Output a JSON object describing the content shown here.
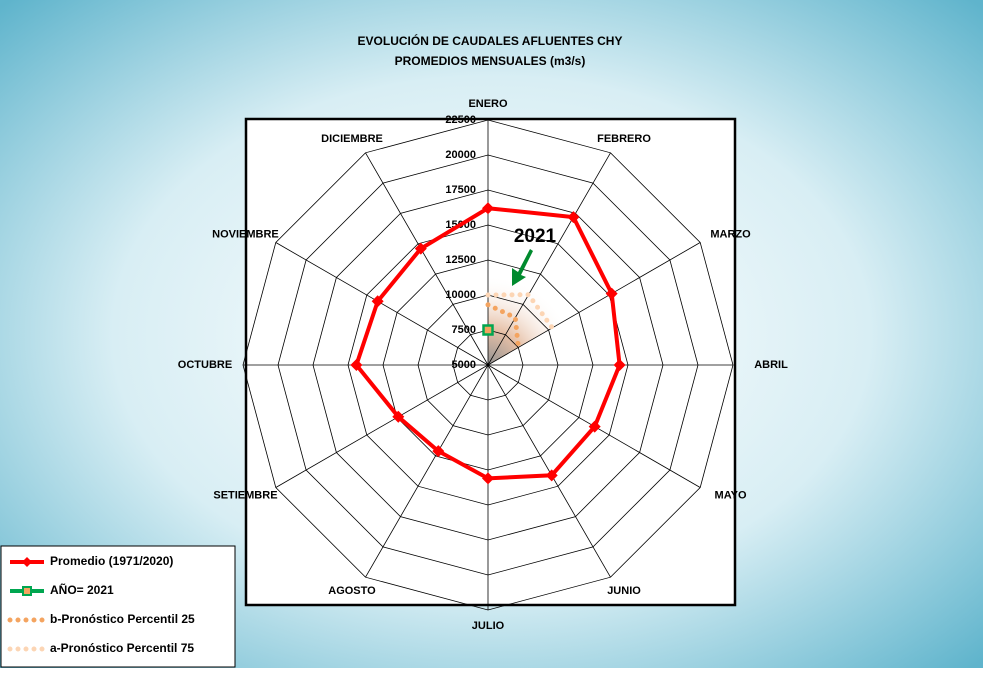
{
  "chart_data": {
    "type": "radar",
    "title": "EVOLUCIÓN DE CAUDALES AFLUENTES CHY",
    "subtitle": "PROMEDIOS MENSUALES (m3/s)",
    "categories": [
      "ENERO",
      "FEBRERO",
      "MARZO",
      "ABRIL",
      "MAYO",
      "JUNIO",
      "JULIO",
      "AGOSTO",
      "SETIEMBRE",
      "OCTUBRE",
      "NOVIEMBRE",
      "DICIEMBRE"
    ],
    "rlim": [
      5000,
      22500
    ],
    "rticks": [
      5000,
      7500,
      10000,
      12500,
      15000,
      17500,
      20000,
      22500
    ],
    "grid": true,
    "annotation": "2021",
    "series": [
      {
        "name": "Promedio (1971/2020)",
        "color": "#ff0000",
        "style": "solid",
        "values": [
          16200,
          17200,
          15200,
          14400,
          13800,
          14100,
          13100,
          12100,
          12400,
          14400,
          14100,
          14600
        ]
      },
      {
        "name": "AÑO= 2021",
        "color": "#00a650",
        "style": "solid",
        "values": [
          7500,
          null,
          null,
          null,
          null,
          null,
          null,
          null,
          null,
          null,
          null,
          null
        ]
      },
      {
        "name": "b-Pronóstico Percentil 25",
        "color": "#f4a460",
        "style": "dotted",
        "values": [
          9300,
          8900,
          7500,
          null,
          null,
          null,
          null,
          null,
          null,
          null,
          null,
          null
        ]
      },
      {
        "name": "a-Pronóstico Percentil 75",
        "color": "#fcd5b4",
        "style": "dotted",
        "values": [
          10000,
          10800,
          10300,
          null,
          null,
          null,
          null,
          null,
          null,
          null,
          null,
          9500
        ]
      }
    ]
  }
}
